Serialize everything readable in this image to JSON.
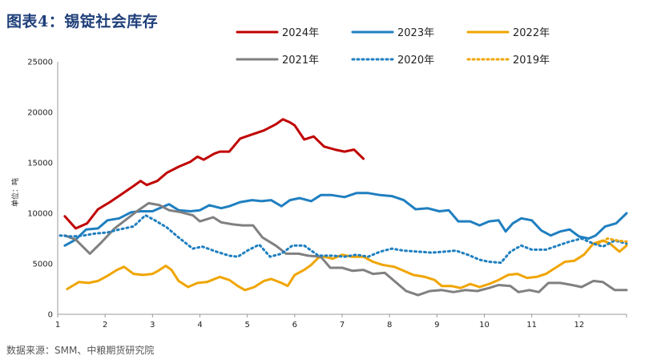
{
  "header": {
    "title": "图表4：锡锭社会库存"
  },
  "footer": {
    "source": "数据来源：SMM、中粮期货研究院"
  },
  "chart_data": {
    "type": "line",
    "title": "图表4：锡锭社会库存",
    "ylabel": "单位：吨",
    "xlabel": "",
    "xlim": [
      1,
      13
    ],
    "ylim": [
      0,
      25000
    ],
    "x_ticks": [
      1,
      2,
      3,
      4,
      5,
      6,
      7,
      8,
      9,
      10,
      11,
      12
    ],
    "y_ticks": [
      0,
      5000,
      10000,
      15000,
      20000,
      25000
    ],
    "grid": false,
    "legend_position": "top",
    "series": [
      {
        "name": "2024年",
        "color": "#c00000",
        "style": "solid",
        "points": [
          [
            1.15,
            9700
          ],
          [
            1.38,
            8500
          ],
          [
            1.62,
            9000
          ],
          [
            1.85,
            10400
          ],
          [
            2.1,
            11100
          ],
          [
            2.35,
            11900
          ],
          [
            2.6,
            12700
          ],
          [
            2.75,
            13200
          ],
          [
            2.88,
            12800
          ],
          [
            3.1,
            13200
          ],
          [
            3.3,
            14000
          ],
          [
            3.55,
            14600
          ],
          [
            3.8,
            15100
          ],
          [
            3.95,
            15600
          ],
          [
            4.08,
            15300
          ],
          [
            4.3,
            15900
          ],
          [
            4.42,
            16100
          ],
          [
            4.62,
            16100
          ],
          [
            4.85,
            17400
          ],
          [
            5.1,
            17800
          ],
          [
            5.35,
            18200
          ],
          [
            5.6,
            18800
          ],
          [
            5.75,
            19300
          ],
          [
            5.9,
            19000
          ],
          [
            6.0,
            18700
          ],
          [
            6.2,
            17300
          ],
          [
            6.4,
            17600
          ],
          [
            6.62,
            16600
          ],
          [
            6.85,
            16300
          ],
          [
            7.05,
            16100
          ],
          [
            7.25,
            16300
          ],
          [
            7.45,
            15400
          ]
        ]
      },
      {
        "name": "2023年",
        "color": "#1f7fc0",
        "style": "solid",
        "points": [
          [
            1.15,
            6800
          ],
          [
            1.38,
            7400
          ],
          [
            1.6,
            8400
          ],
          [
            1.85,
            8500
          ],
          [
            2.05,
            9300
          ],
          [
            2.3,
            9500
          ],
          [
            2.55,
            10100
          ],
          [
            2.75,
            10200
          ],
          [
            3.0,
            10200
          ],
          [
            3.2,
            10600
          ],
          [
            3.35,
            10900
          ],
          [
            3.55,
            10300
          ],
          [
            3.8,
            10200
          ],
          [
            4.0,
            10300
          ],
          [
            4.2,
            10800
          ],
          [
            4.45,
            10500
          ],
          [
            4.62,
            10700
          ],
          [
            4.85,
            11100
          ],
          [
            5.1,
            11300
          ],
          [
            5.3,
            11200
          ],
          [
            5.5,
            11300
          ],
          [
            5.72,
            10700
          ],
          [
            5.9,
            11300
          ],
          [
            6.1,
            11500
          ],
          [
            6.35,
            11200
          ],
          [
            6.55,
            11800
          ],
          [
            6.78,
            11800
          ],
          [
            7.05,
            11600
          ],
          [
            7.3,
            12000
          ],
          [
            7.55,
            12000
          ],
          [
            7.8,
            11800
          ],
          [
            8.05,
            11700
          ],
          [
            8.3,
            11300
          ],
          [
            8.55,
            10400
          ],
          [
            8.8,
            10500
          ],
          [
            9.05,
            10200
          ],
          [
            9.25,
            10300
          ],
          [
            9.45,
            9200
          ],
          [
            9.7,
            9200
          ],
          [
            9.9,
            8800
          ],
          [
            10.1,
            9200
          ],
          [
            10.3,
            9300
          ],
          [
            10.45,
            8200
          ],
          [
            10.6,
            9000
          ],
          [
            10.78,
            9500
          ],
          [
            11.0,
            9300
          ],
          [
            11.2,
            8300
          ],
          [
            11.4,
            7800
          ],
          [
            11.6,
            8200
          ],
          [
            11.8,
            8400
          ],
          [
            12.0,
            7700
          ],
          [
            12.2,
            7500
          ],
          [
            12.35,
            7800
          ],
          [
            12.55,
            8700
          ],
          [
            12.78,
            9000
          ],
          [
            13.0,
            10000
          ]
        ]
      },
      {
        "name": "2022年",
        "color": "#f0a500",
        "style": "solid",
        "points": [
          [
            1.2,
            2500
          ],
          [
            1.45,
            3200
          ],
          [
            1.65,
            3100
          ],
          [
            1.85,
            3300
          ],
          [
            2.05,
            3800
          ],
          [
            2.25,
            4400
          ],
          [
            2.4,
            4700
          ],
          [
            2.6,
            4000
          ],
          [
            2.8,
            3900
          ],
          [
            3.0,
            4000
          ],
          [
            3.12,
            4300
          ],
          [
            3.28,
            4800
          ],
          [
            3.4,
            4400
          ],
          [
            3.55,
            3300
          ],
          [
            3.75,
            2700
          ],
          [
            3.95,
            3100
          ],
          [
            4.15,
            3200
          ],
          [
            4.42,
            3700
          ],
          [
            4.62,
            3400
          ],
          [
            4.8,
            2800
          ],
          [
            4.95,
            2400
          ],
          [
            5.15,
            2700
          ],
          [
            5.35,
            3300
          ],
          [
            5.5,
            3500
          ],
          [
            5.72,
            3100
          ],
          [
            5.85,
            2800
          ],
          [
            6.0,
            3900
          ],
          [
            6.2,
            4400
          ],
          [
            6.35,
            4900
          ],
          [
            6.5,
            5600
          ],
          [
            6.62,
            5700
          ],
          [
            6.8,
            5500
          ],
          [
            7.0,
            5900
          ],
          [
            7.2,
            5700
          ],
          [
            7.45,
            5700
          ],
          [
            7.65,
            5200
          ],
          [
            7.85,
            4900
          ],
          [
            8.1,
            4700
          ],
          [
            8.3,
            4300
          ],
          [
            8.5,
            3900
          ],
          [
            8.75,
            3700
          ],
          [
            8.95,
            3400
          ],
          [
            9.1,
            2800
          ],
          [
            9.3,
            2800
          ],
          [
            9.5,
            2600
          ],
          [
            9.7,
            3000
          ],
          [
            9.9,
            2700
          ],
          [
            10.1,
            3000
          ],
          [
            10.3,
            3400
          ],
          [
            10.5,
            3900
          ],
          [
            10.7,
            4000
          ],
          [
            10.9,
            3600
          ],
          [
            11.1,
            3700
          ],
          [
            11.3,
            4000
          ],
          [
            11.5,
            4600
          ],
          [
            11.7,
            5200
          ],
          [
            11.9,
            5300
          ],
          [
            12.1,
            5900
          ],
          [
            12.3,
            7000
          ],
          [
            12.5,
            7300
          ],
          [
            12.65,
            7000
          ],
          [
            12.85,
            6200
          ],
          [
            13.0,
            6800
          ]
        ]
      },
      {
        "name": "2021年",
        "color": "#808080",
        "style": "solid",
        "points": [
          [
            1.15,
            7800
          ],
          [
            1.38,
            7400
          ],
          [
            1.68,
            6000
          ],
          [
            1.92,
            7100
          ],
          [
            2.2,
            8500
          ],
          [
            2.45,
            9400
          ],
          [
            2.7,
            10300
          ],
          [
            2.92,
            11000
          ],
          [
            3.15,
            10800
          ],
          [
            3.35,
            10300
          ],
          [
            3.6,
            10100
          ],
          [
            3.85,
            9800
          ],
          [
            4.0,
            9200
          ],
          [
            4.28,
            9600
          ],
          [
            4.45,
            9100
          ],
          [
            4.7,
            8900
          ],
          [
            4.9,
            8800
          ],
          [
            5.12,
            8800
          ],
          [
            5.32,
            7600
          ],
          [
            5.6,
            6800
          ],
          [
            5.82,
            6000
          ],
          [
            6.08,
            6000
          ],
          [
            6.28,
            5800
          ],
          [
            6.55,
            5700
          ],
          [
            6.75,
            4600
          ],
          [
            7.0,
            4600
          ],
          [
            7.22,
            4300
          ],
          [
            7.45,
            4400
          ],
          [
            7.65,
            4000
          ],
          [
            7.9,
            4100
          ],
          [
            8.1,
            3300
          ],
          [
            8.35,
            2300
          ],
          [
            8.6,
            1900
          ],
          [
            8.85,
            2300
          ],
          [
            9.1,
            2400
          ],
          [
            9.35,
            2200
          ],
          [
            9.6,
            2400
          ],
          [
            9.85,
            2300
          ],
          [
            10.1,
            2600
          ],
          [
            10.3,
            2900
          ],
          [
            10.55,
            2800
          ],
          [
            10.72,
            2200
          ],
          [
            10.95,
            2400
          ],
          [
            11.15,
            2200
          ],
          [
            11.35,
            3100
          ],
          [
            11.6,
            3100
          ],
          [
            11.85,
            2900
          ],
          [
            12.05,
            2700
          ],
          [
            12.3,
            3300
          ],
          [
            12.5,
            3200
          ],
          [
            12.75,
            2400
          ],
          [
            13.0,
            2400
          ]
        ]
      },
      {
        "name": "2020年",
        "color": "#1f7fc0",
        "style": "dotted",
        "points": [
          [
            1.05,
            7800
          ],
          [
            1.3,
            7700
          ],
          [
            1.55,
            7800
          ],
          [
            1.8,
            8000
          ],
          [
            2.05,
            8100
          ],
          [
            2.3,
            8400
          ],
          [
            2.6,
            8700
          ],
          [
            2.85,
            9800
          ],
          [
            3.05,
            9300
          ],
          [
            3.3,
            8600
          ],
          [
            3.55,
            7600
          ],
          [
            3.85,
            6500
          ],
          [
            4.05,
            6700
          ],
          [
            4.35,
            6200
          ],
          [
            4.62,
            5800
          ],
          [
            4.8,
            5700
          ],
          [
            5.0,
            6300
          ],
          [
            5.25,
            6900
          ],
          [
            5.48,
            5700
          ],
          [
            5.72,
            6000
          ],
          [
            5.95,
            6800
          ],
          [
            6.2,
            6800
          ],
          [
            6.5,
            5800
          ],
          [
            6.8,
            5800
          ],
          [
            7.05,
            5700
          ],
          [
            7.3,
            5900
          ],
          [
            7.55,
            5700
          ],
          [
            7.8,
            6200
          ],
          [
            8.05,
            6500
          ],
          [
            8.3,
            6300
          ],
          [
            8.6,
            6200
          ],
          [
            8.9,
            6100
          ],
          [
            9.15,
            6200
          ],
          [
            9.4,
            6300
          ],
          [
            9.65,
            5900
          ],
          [
            9.9,
            5400
          ],
          [
            10.1,
            5200
          ],
          [
            10.35,
            5100
          ],
          [
            10.55,
            6200
          ],
          [
            10.78,
            6800
          ],
          [
            11.0,
            6400
          ],
          [
            11.3,
            6400
          ],
          [
            11.55,
            6800
          ],
          [
            11.8,
            7200
          ],
          [
            12.05,
            7500
          ],
          [
            12.3,
            7000
          ],
          [
            12.5,
            6700
          ],
          [
            12.75,
            7300
          ],
          [
            13.0,
            7000
          ]
        ]
      },
      {
        "name": "2019年",
        "color": "#f0a500",
        "style": "dotted",
        "points": [
          [
            12.4,
            7000
          ],
          [
            12.6,
            7500
          ],
          [
            12.8,
            7300
          ],
          [
            13.0,
            7200
          ]
        ]
      }
    ]
  }
}
